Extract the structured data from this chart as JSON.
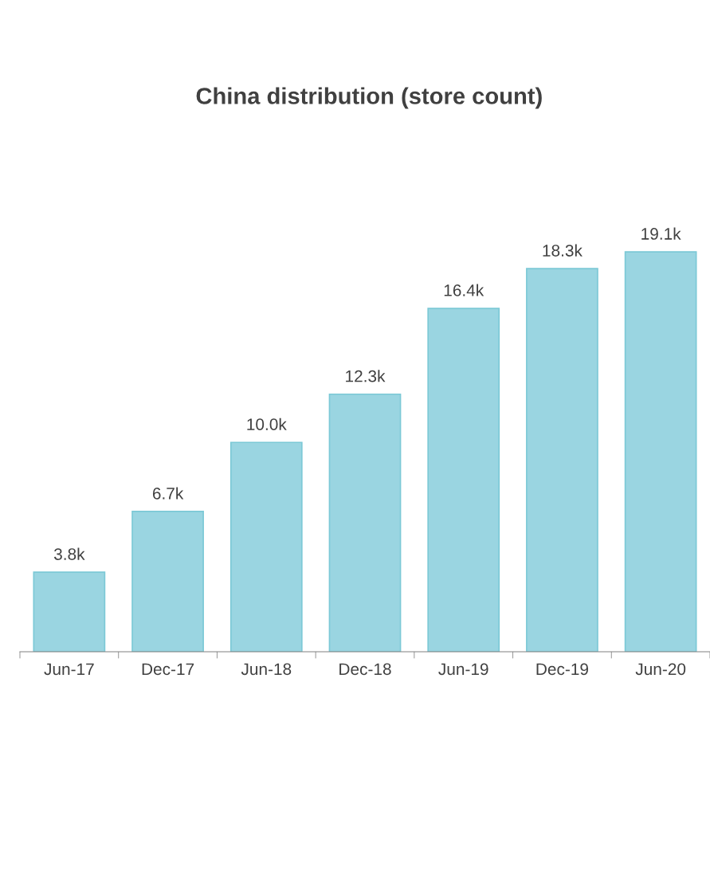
{
  "chart_data": {
    "type": "bar",
    "title": "China distribution (store count)",
    "categories": [
      "Jun-17",
      "Dec-17",
      "Jun-18",
      "Dec-18",
      "Jun-19",
      "Dec-19",
      "Jun-20"
    ],
    "values": [
      3800,
      6700,
      10000,
      12300,
      16400,
      18300,
      19100
    ],
    "value_labels": [
      "3.8k",
      "6.7k",
      "10.0k",
      "12.3k",
      "16.4k",
      "18.3k",
      "19.1k"
    ],
    "color": "#9ad5e1",
    "grid": false,
    "legend": false,
    "tick_labels": "x"
  }
}
